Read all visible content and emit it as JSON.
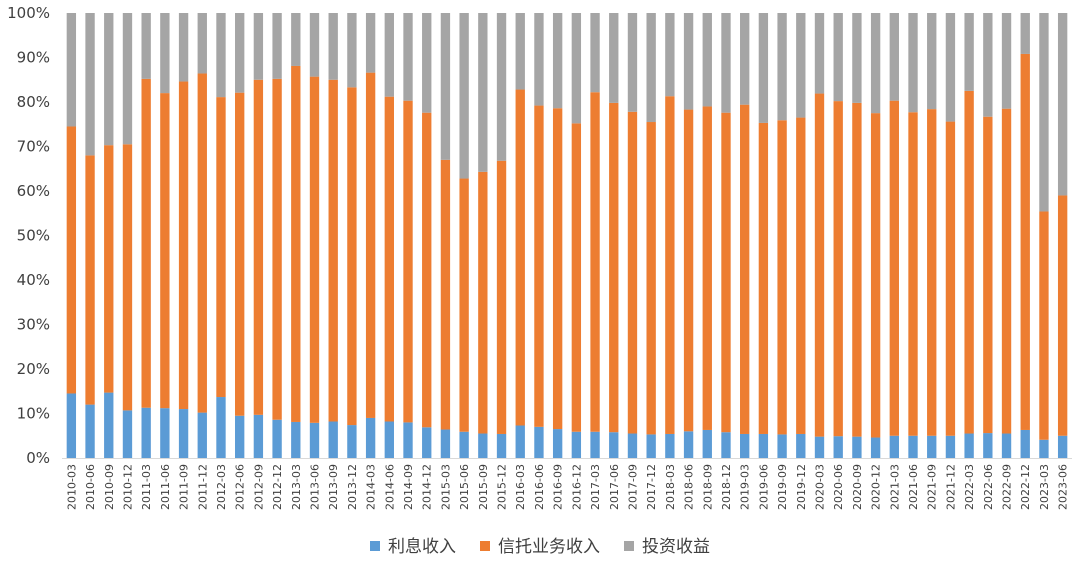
{
  "chart_data": {
    "type": "bar",
    "stacked": true,
    "normalized": true,
    "categories": [
      "2010-03",
      "2010-06",
      "2010-09",
      "2010-12",
      "2011-03",
      "2011-06",
      "2011-09",
      "2011-12",
      "2012-03",
      "2012-06",
      "2012-09",
      "2012-12",
      "2013-03",
      "2013-06",
      "2013-09",
      "2013-12",
      "2014-03",
      "2014-06",
      "2014-09",
      "2014-12",
      "2015-03",
      "2015-06",
      "2015-09",
      "2015-12",
      "2016-03",
      "2016-06",
      "2016-09",
      "2016-12",
      "2017-03",
      "2017-06",
      "2017-09",
      "2017-12",
      "2018-03",
      "2018-06",
      "2018-09",
      "2018-12",
      "2019-03",
      "2019-06",
      "2019-09",
      "2019-12",
      "2020-03",
      "2020-06",
      "2020-09",
      "2020-12",
      "2021-03",
      "2021-06",
      "2021-09",
      "2021-12",
      "2022-03",
      "2022-06",
      "2022-09",
      "2022-12",
      "2023-03",
      "2023-06"
    ],
    "series": [
      {
        "name": "利息收入",
        "color": "#5b9bd5",
        "values": [
          14.5,
          12,
          14.7,
          10.7,
          11.3,
          11.2,
          11,
          10.2,
          13.7,
          9.5,
          9.7,
          8.6,
          8.1,
          7.9,
          8.2,
          7.4,
          9,
          8.2,
          8,
          6.9,
          6.4,
          5.9,
          5.5,
          5.4,
          7.3,
          7,
          6.5,
          5.9,
          5.9,
          5.8,
          5.5,
          5.3,
          5.4,
          6,
          6.3,
          5.8,
          5.4,
          5.4,
          5.3,
          5.4,
          4.8,
          4.9,
          4.8,
          4.6,
          5,
          5,
          5,
          5,
          5.5,
          5.6,
          5.5,
          6.3,
          4.1,
          5
        ]
      },
      {
        "name": "信托业务收入",
        "color": "#ed7d31",
        "values": [
          60,
          56,
          55.6,
          59.8,
          73.9,
          70.8,
          73.6,
          76.2,
          67.4,
          72.6,
          75.3,
          76.6,
          80,
          77.8,
          76.8,
          75.9,
          77.6,
          73,
          72.3,
          70.7,
          60.6,
          56.9,
          58.8,
          61.4,
          75.5,
          72.2,
          72.1,
          69.3,
          76.3,
          74,
          72.3,
          70.2,
          75.9,
          72.3,
          72.7,
          71.8,
          74,
          69.9,
          70.6,
          71.1,
          77.1,
          75.3,
          75,
          72.9,
          75.3,
          72.7,
          73.4,
          70.6,
          77,
          71.1,
          73,
          84.5,
          51.3,
          54
        ]
      },
      {
        "name": "投资收益",
        "color": "#a5a5a5",
        "values": [
          25.5,
          32,
          29.7,
          29.5,
          14.8,
          18,
          15.4,
          13.6,
          18.9,
          17.9,
          15,
          14.8,
          11.9,
          14.3,
          15,
          16.7,
          13.4,
          18.8,
          19.7,
          22.4,
          33,
          37.2,
          35.7,
          33.2,
          17.2,
          20.8,
          21.4,
          24.8,
          17.8,
          20.2,
          22.2,
          24.5,
          18.7,
          21.7,
          21,
          22.4,
          20.6,
          24.7,
          24.1,
          23.5,
          18.1,
          19.8,
          20.2,
          22.5,
          19.7,
          22.3,
          21.6,
          24.4,
          17.5,
          23.3,
          21.5,
          9.2,
          44.6,
          41
        ]
      }
    ],
    "y_ticks": [
      "0%",
      "10%",
      "20%",
      "30%",
      "40%",
      "50%",
      "60%",
      "70%",
      "80%",
      "90%",
      "100%"
    ],
    "ylim": [
      0,
      100
    ],
    "grid": false,
    "legend_position": "bottom-center"
  }
}
